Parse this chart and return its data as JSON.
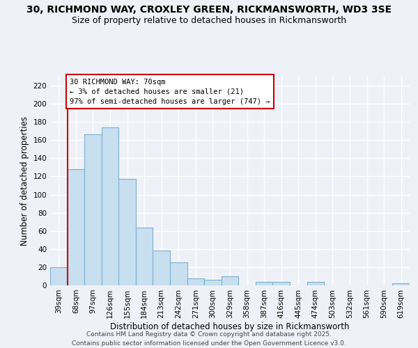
{
  "title": "30, RICHMOND WAY, CROXLEY GREEN, RICKMANSWORTH, WD3 3SE",
  "subtitle": "Size of property relative to detached houses in Rickmansworth",
  "xlabel": "Distribution of detached houses by size in Rickmansworth",
  "ylabel": "Number of detached properties",
  "categories": [
    "39sqm",
    "68sqm",
    "97sqm",
    "126sqm",
    "155sqm",
    "184sqm",
    "213sqm",
    "242sqm",
    "271sqm",
    "300sqm",
    "329sqm",
    "358sqm",
    "387sqm",
    "416sqm",
    "445sqm",
    "474sqm",
    "503sqm",
    "532sqm",
    "561sqm",
    "590sqm",
    "619sqm"
  ],
  "values": [
    20,
    128,
    166,
    174,
    117,
    64,
    38,
    25,
    8,
    6,
    10,
    0,
    4,
    4,
    0,
    4,
    0,
    0,
    0,
    0,
    2
  ],
  "bar_color": "#c8dff0",
  "bar_edge_color": "#7ab0d0",
  "marker_line_color": "#cc0000",
  "ylim": [
    0,
    230
  ],
  "yticks": [
    0,
    20,
    40,
    60,
    80,
    100,
    120,
    140,
    160,
    180,
    200,
    220
  ],
  "annotation_text_line1": "30 RICHMOND WAY: 70sqm",
  "annotation_text_line2": "← 3% of detached houses are smaller (21)",
  "annotation_text_line3": "97% of semi-detached houses are larger (747) →",
  "annotation_box_color": "#ffffff",
  "annotation_box_edge_color": "#cc0000",
  "footer_line1": "Contains HM Land Registry data © Crown copyright and database right 2025.",
  "footer_line2": "Contains public sector information licensed under the Open Government Licence v3.0.",
  "background_color": "#eef2f8",
  "grid_color": "#ffffff",
  "title_fontsize": 10,
  "subtitle_fontsize": 9,
  "axis_label_fontsize": 8.5,
  "tick_fontsize": 7.5,
  "footer_fontsize": 6.5,
  "annotation_fontsize": 7.5
}
